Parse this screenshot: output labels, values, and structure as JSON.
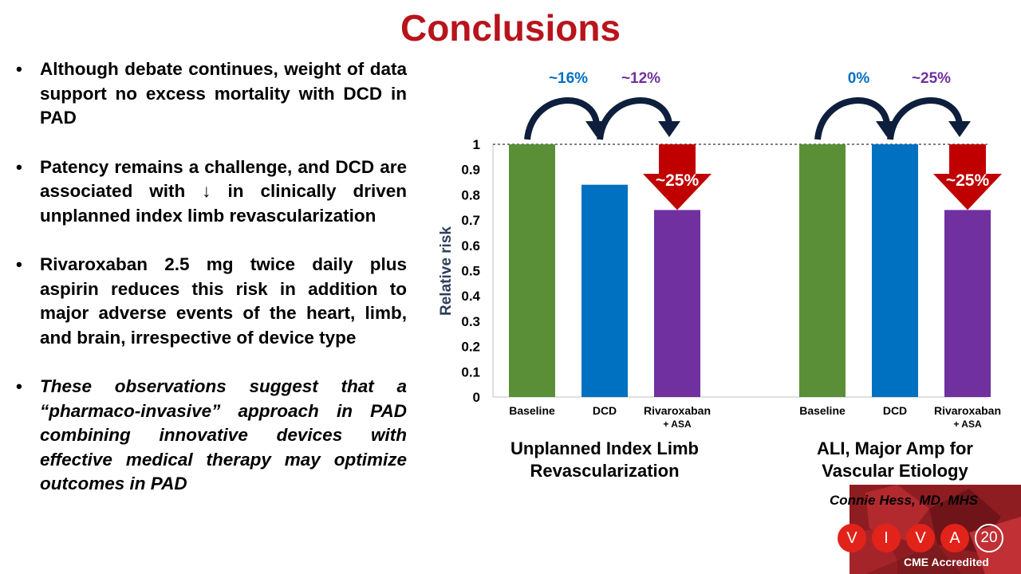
{
  "slide": {
    "title": "Conclusions",
    "bullet_char": "•",
    "bullets": [
      {
        "text": "Although debate continues, weight of data support no excess mortality with DCD in PAD",
        "italic": false
      },
      {
        "text": "Patency remains a challenge, and DCD are associated with ↓ in clinically driven unplanned index limb revascularization",
        "italic": false
      },
      {
        "text": "Rivaroxaban 2.5 mg twice daily plus aspirin reduces this risk in addition to major adverse events of the heart, limb, and brain, irrespective of device type",
        "italic": false
      },
      {
        "text": "These observations suggest that a “pharmaco-invasive” approach in PAD combining innovative devices with effective medical therapy may optimize outcomes in PAD",
        "italic": true
      }
    ],
    "credit": "Connie Hess, MD, MHS",
    "logo": {
      "letters": [
        "V",
        "I",
        "V",
        "A"
      ],
      "number": "20",
      "accreditation": "CME Accredited"
    }
  },
  "chart_data": {
    "type": "bar",
    "ylabel": "Relative risk",
    "ylim": [
      0,
      1
    ],
    "yticks": [
      "0",
      "0.1",
      "0.2",
      "0.3",
      "0.4",
      "0.5",
      "0.6",
      "0.7",
      "0.8",
      "0.9",
      "1"
    ],
    "colors": {
      "baseline": "#5a8f37",
      "dcd": "#0070c0",
      "riva": "#7030a0",
      "arrow_dark": "#0d1f3c",
      "red_arrow": "#c00000"
    },
    "groups": [
      {
        "label_lines": [
          "Unplanned Index Limb",
          "Revascularization"
        ],
        "bars": [
          {
            "label_lines": [
              "Baseline"
            ],
            "value": 1.0,
            "color": "#5a8f37"
          },
          {
            "label_lines": [
              "DCD"
            ],
            "value": 0.84,
            "color": "#0070c0"
          },
          {
            "label_lines": [
              "Rivaroxaban",
              "+ ASA"
            ],
            "value": 0.74,
            "color": "#7030a0"
          }
        ],
        "change_labels": [
          {
            "text": "~16%",
            "color": "#0070c0"
          },
          {
            "text": "~12%",
            "color": "#7030a0"
          }
        ],
        "reduction_label": "~25%"
      },
      {
        "label_lines": [
          "ALI, Major Amp for",
          "Vascular Etiology"
        ],
        "bars": [
          {
            "label_lines": [
              "Baseline"
            ],
            "value": 1.0,
            "color": "#5a8f37"
          },
          {
            "label_lines": [
              "DCD"
            ],
            "value": 1.0,
            "color": "#0070c0"
          },
          {
            "label_lines": [
              "Rivaroxaban",
              "+ ASA"
            ],
            "value": 0.74,
            "color": "#7030a0"
          }
        ],
        "change_labels": [
          {
            "text": "0%",
            "color": "#0070c0"
          },
          {
            "text": "~25%",
            "color": "#7030a0"
          }
        ],
        "reduction_label": "~25%"
      }
    ]
  }
}
